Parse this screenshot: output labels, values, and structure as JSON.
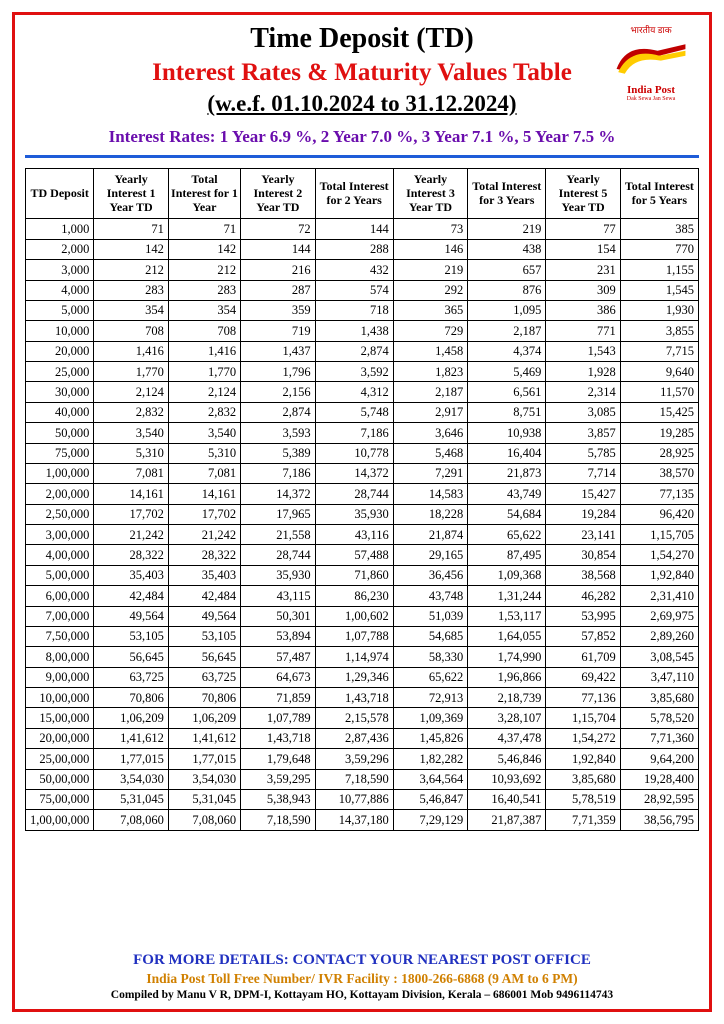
{
  "header": {
    "title_line1": "Time Deposit (TD)",
    "title_line2": "Interest Rates & Maturity Values Table",
    "title_line3": "(w.e.f. 01.10.2024 to 31.12.2024)",
    "logo_hindi": "भारतीय डाक",
    "logo_text": "India Post",
    "logo_tagline": "Dak Sewa Jan Sewa",
    "rates_line": "Interest Rates: 1 Year 6.9 %, 2 Year 7.0 %, 3 Year 7.1 %, 5 Year 7.5 %"
  },
  "colors": {
    "frame_border": "#e01010",
    "title_red": "#e01010",
    "rates_purple": "#6a0dad",
    "rule_blue": "#1e5cd8",
    "footer_blue": "#2030c0",
    "footer_orange": "#d08000",
    "logo_red": "#c00000"
  },
  "table": {
    "columns": [
      "TD Deposit",
      "Yearly Interest 1 Year TD",
      "Total Interest for 1 Year",
      "Yearly Interest 2 Year TD",
      "Total Interest for 2 Years",
      "Yearly Interest 3 Year TD",
      "Total Interest for 3 Years",
      "Yearly Interest 5 Year TD",
      "Total Interest for 5 Years"
    ],
    "rows": [
      [
        "1,000",
        "71",
        "71",
        "72",
        "144",
        "73",
        "219",
        "77",
        "385"
      ],
      [
        "2,000",
        "142",
        "142",
        "144",
        "288",
        "146",
        "438",
        "154",
        "770"
      ],
      [
        "3,000",
        "212",
        "212",
        "216",
        "432",
        "219",
        "657",
        "231",
        "1,155"
      ],
      [
        "4,000",
        "283",
        "283",
        "287",
        "574",
        "292",
        "876",
        "309",
        "1,545"
      ],
      [
        "5,000",
        "354",
        "354",
        "359",
        "718",
        "365",
        "1,095",
        "386",
        "1,930"
      ],
      [
        "10,000",
        "708",
        "708",
        "719",
        "1,438",
        "729",
        "2,187",
        "771",
        "3,855"
      ],
      [
        "20,000",
        "1,416",
        "1,416",
        "1,437",
        "2,874",
        "1,458",
        "4,374",
        "1,543",
        "7,715"
      ],
      [
        "25,000",
        "1,770",
        "1,770",
        "1,796",
        "3,592",
        "1,823",
        "5,469",
        "1,928",
        "9,640"
      ],
      [
        "30,000",
        "2,124",
        "2,124",
        "2,156",
        "4,312",
        "2,187",
        "6,561",
        "2,314",
        "11,570"
      ],
      [
        "40,000",
        "2,832",
        "2,832",
        "2,874",
        "5,748",
        "2,917",
        "8,751",
        "3,085",
        "15,425"
      ],
      [
        "50,000",
        "3,540",
        "3,540",
        "3,593",
        "7,186",
        "3,646",
        "10,938",
        "3,857",
        "19,285"
      ],
      [
        "75,000",
        "5,310",
        "5,310",
        "5,389",
        "10,778",
        "5,468",
        "16,404",
        "5,785",
        "28,925"
      ],
      [
        "1,00,000",
        "7,081",
        "7,081",
        "7,186",
        "14,372",
        "7,291",
        "21,873",
        "7,714",
        "38,570"
      ],
      [
        "2,00,000",
        "14,161",
        "14,161",
        "14,372",
        "28,744",
        "14,583",
        "43,749",
        "15,427",
        "77,135"
      ],
      [
        "2,50,000",
        "17,702",
        "17,702",
        "17,965",
        "35,930",
        "18,228",
        "54,684",
        "19,284",
        "96,420"
      ],
      [
        "3,00,000",
        "21,242",
        "21,242",
        "21,558",
        "43,116",
        "21,874",
        "65,622",
        "23,141",
        "1,15,705"
      ],
      [
        "4,00,000",
        "28,322",
        "28,322",
        "28,744",
        "57,488",
        "29,165",
        "87,495",
        "30,854",
        "1,54,270"
      ],
      [
        "5,00,000",
        "35,403",
        "35,403",
        "35,930",
        "71,860",
        "36,456",
        "1,09,368",
        "38,568",
        "1,92,840"
      ],
      [
        "6,00,000",
        "42,484",
        "42,484",
        "43,115",
        "86,230",
        "43,748",
        "1,31,244",
        "46,282",
        "2,31,410"
      ],
      [
        "7,00,000",
        "49,564",
        "49,564",
        "50,301",
        "1,00,602",
        "51,039",
        "1,53,117",
        "53,995",
        "2,69,975"
      ],
      [
        "7,50,000",
        "53,105",
        "53,105",
        "53,894",
        "1,07,788",
        "54,685",
        "1,64,055",
        "57,852",
        "2,89,260"
      ],
      [
        "8,00,000",
        "56,645",
        "56,645",
        "57,487",
        "1,14,974",
        "58,330",
        "1,74,990",
        "61,709",
        "3,08,545"
      ],
      [
        "9,00,000",
        "63,725",
        "63,725",
        "64,673",
        "1,29,346",
        "65,622",
        "1,96,866",
        "69,422",
        "3,47,110"
      ],
      [
        "10,00,000",
        "70,806",
        "70,806",
        "71,859",
        "1,43,718",
        "72,913",
        "2,18,739",
        "77,136",
        "3,85,680"
      ],
      [
        "15,00,000",
        "1,06,209",
        "1,06,209",
        "1,07,789",
        "2,15,578",
        "1,09,369",
        "3,28,107",
        "1,15,704",
        "5,78,520"
      ],
      [
        "20,00,000",
        "1,41,612",
        "1,41,612",
        "1,43,718",
        "2,87,436",
        "1,45,826",
        "4,37,478",
        "1,54,272",
        "7,71,360"
      ],
      [
        "25,00,000",
        "1,77,015",
        "1,77,015",
        "1,79,648",
        "3,59,296",
        "1,82,282",
        "5,46,846",
        "1,92,840",
        "9,64,200"
      ],
      [
        "50,00,000",
        "3,54,030",
        "3,54,030",
        "3,59,295",
        "7,18,590",
        "3,64,564",
        "10,93,692",
        "3,85,680",
        "19,28,400"
      ],
      [
        "75,00,000",
        "5,31,045",
        "5,31,045",
        "5,38,943",
        "10,77,886",
        "5,46,847",
        "16,40,541",
        "5,78,519",
        "28,92,595"
      ],
      [
        "1,00,00,000",
        "7,08,060",
        "7,08,060",
        "7,18,590",
        "14,37,180",
        "7,29,129",
        "21,87,387",
        "7,71,359",
        "38,56,795"
      ]
    ]
  },
  "footer": {
    "line1": "FOR MORE DETAILS: CONTACT YOUR NEAREST POST OFFICE",
    "line2": "India Post Toll Free Number/ IVR Facility : 1800-266-6868 (9 AM to 6 PM)",
    "line3": "Compiled by Manu V R, DPM-I, Kottayam HO, Kottayam Division, Kerala – 686001  Mob 9496114743"
  }
}
